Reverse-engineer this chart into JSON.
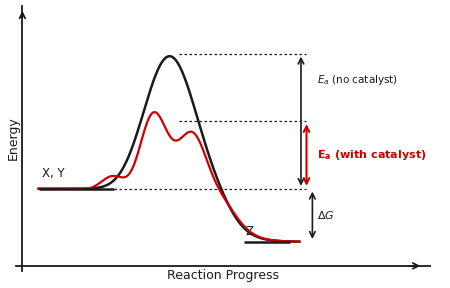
{
  "xlabel": "Reaction Progress",
  "ylabel": "Energy",
  "xy_label": "X, Y",
  "z_label": "Z",
  "ea_no_cat_suffix": " (no catalyst)",
  "ea_cat_suffix": " (with catalyst)",
  "delta_g_label": "ΔG",
  "reactant_y": 0.32,
  "product_y": 0.1,
  "black_peak_y": 0.88,
  "red_peak_y": 0.6,
  "black_color": "#1a1a1a",
  "red_color": "#cc0000",
  "bg_color": "#ffffff",
  "xlim": [
    0,
    10
  ],
  "ylim": [
    0,
    10
  ]
}
